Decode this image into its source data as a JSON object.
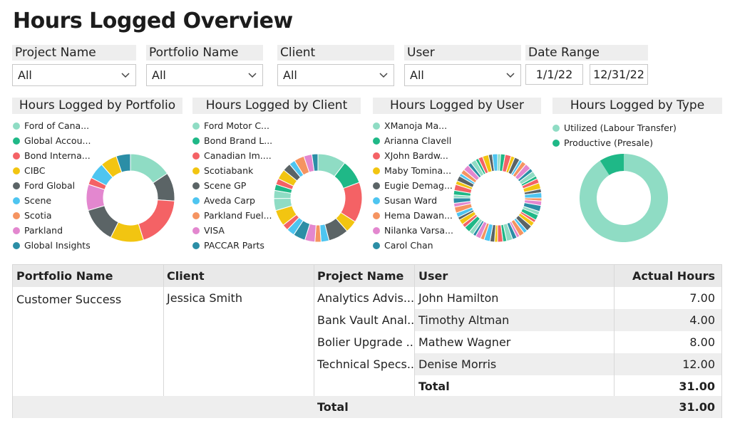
{
  "title": "Hours Logged Overview",
  "filters": {
    "project": {
      "label": "Project Name",
      "value": "All"
    },
    "portfolio": {
      "label": "Portfolio Name",
      "value": "All"
    },
    "client": {
      "label": "Client",
      "value": "All"
    },
    "user": {
      "label": "User",
      "value": "All"
    },
    "date": {
      "label": "Date Range",
      "start": "1/1/22",
      "end": "12/31/22"
    }
  },
  "charts": {
    "portfolio": {
      "title": "Hours Logged by Portfolio",
      "legend": [
        {
          "label": "Ford of Cana...",
          "color": "#8fdcc4"
        },
        {
          "label": "Global Accou...",
          "color": "#1fb887"
        },
        {
          "label": "Bond Interna...",
          "color": "#f46265"
        },
        {
          "label": "CIBC",
          "color": "#f2c511"
        },
        {
          "label": "Ford Global",
          "color": "#5b6466"
        },
        {
          "label": "Scene",
          "color": "#4ec5f0"
        },
        {
          "label": "Scotia",
          "color": "#f59461"
        },
        {
          "label": "Parkland",
          "color": "#e387cf"
        },
        {
          "label": "Global Insights",
          "color": "#2b8ea6"
        }
      ],
      "values": [
        18,
        12,
        22,
        14,
        15,
        11,
        3,
        7,
        7,
        6
      ]
    },
    "client": {
      "title": "Hours Logged by Client",
      "legend": [
        {
          "label": "Ford Motor C...",
          "color": "#8fdcc4"
        },
        {
          "label": "Bond Brand L...",
          "color": "#1fb887"
        },
        {
          "label": "Canadian Im....",
          "color": "#f46265"
        },
        {
          "label": "Scotiabank",
          "color": "#f2c511"
        },
        {
          "label": "Scene GP",
          "color": "#5b6466"
        },
        {
          "label": "Aveda Carp",
          "color": "#4ec5f0"
        },
        {
          "label": "Parkland Fuel...",
          "color": "#f59461"
        },
        {
          "label": "VISA",
          "color": "#e387cf"
        },
        {
          "label": "PACCAR Parts",
          "color": "#2b8ea6"
        }
      ],
      "values": [
        14,
        12,
        20,
        6,
        10,
        4,
        3,
        5,
        6,
        4,
        3,
        8,
        6,
        4,
        3,
        3,
        5,
        4,
        3,
        5,
        4,
        3
      ]
    },
    "user": {
      "title": "Hours Logged by User",
      "legend": [
        {
          "label": "XManoja Ma...",
          "color": "#8fdcc4"
        },
        {
          "label": "Arianna Clavell",
          "color": "#1fb887"
        },
        {
          "label": "XJohn Bardw...",
          "color": "#f46265"
        },
        {
          "label": "Maby Tomina...",
          "color": "#f2c511"
        },
        {
          "label": "Eugie Demag...",
          "color": "#5b6466"
        },
        {
          "label": "Susan Ward",
          "color": "#4ec5f0"
        },
        {
          "label": "Hema Dawan...",
          "color": "#f59461"
        },
        {
          "label": "Nilanka Varsa...",
          "color": "#e387cf"
        },
        {
          "label": "Carol Chan",
          "color": "#2b8ea6"
        }
      ],
      "segments": 60
    },
    "type": {
      "title": "Hours Logged by Type",
      "legend": [
        {
          "label": "Utilized (Labour Transfer)",
          "color": "#8fdcc4"
        },
        {
          "label": "Productive (Presale)",
          "color": "#1fb887"
        }
      ],
      "values": [
        91,
        9
      ]
    }
  },
  "table": {
    "headers": {
      "portfolio": "Portfolio Name",
      "client": "Client",
      "project": "Project Name",
      "user": "User",
      "hours": "Actual Hours"
    },
    "portfolio": "Customer Success",
    "client": "Jessica Smith",
    "rows": [
      {
        "project": "Analytics Advis...",
        "user": "John Hamilton",
        "hours": "7.00"
      },
      {
        "project": "Bank Vault Anal...",
        "user": "Timothy Altman",
        "hours": "4.00"
      },
      {
        "project": "Bolier Upgrade ...",
        "user": "Mathew Wagner",
        "hours": "8.00"
      },
      {
        "project": "Technical Specs...",
        "user": "Denise Morris",
        "hours": "12.00"
      }
    ],
    "client_total_label": "Total",
    "client_total_value": "31.00",
    "grand_total_label": "Total",
    "grand_total_value": "31.00"
  }
}
